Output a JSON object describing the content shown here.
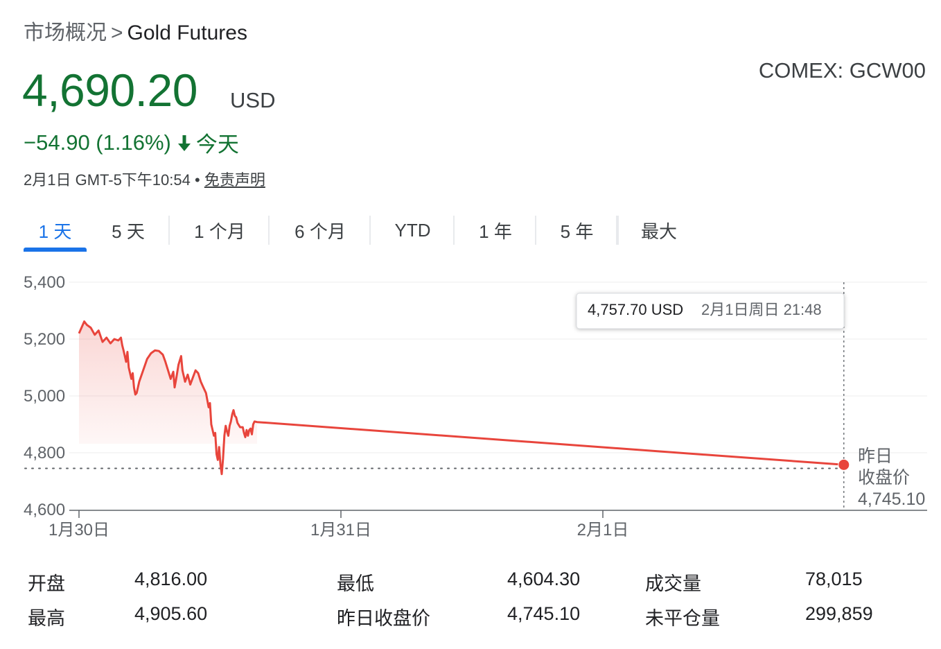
{
  "breadcrumb": {
    "root": "市场概况",
    "separator": ">",
    "current": "Gold Futures"
  },
  "quote": {
    "price": "4,690.20",
    "currency": "USD",
    "ticker": "COMEX: GCW00",
    "change": "−54.90 (1.16%)",
    "change_period": "今天",
    "timestamp": "2月1日 GMT-5下午10:54",
    "bullet": "•",
    "disclaimer": "免责声明"
  },
  "colors": {
    "up_green": "#137333",
    "line_red": "#e8453c",
    "accent_blue": "#1a73e8"
  },
  "tabs": [
    {
      "label": "1 天",
      "active": true
    },
    {
      "label": "5 天",
      "active": false
    },
    {
      "label": "1 个月",
      "active": false
    },
    {
      "label": "6 个月",
      "active": false
    },
    {
      "label": "YTD",
      "active": false
    },
    {
      "label": "1 年",
      "active": false
    },
    {
      "label": "5 年",
      "active": false
    },
    {
      "label": "最大",
      "active": false
    }
  ],
  "tooltip": {
    "value": "4,757.70 USD",
    "time": "2月1日周日 21:48"
  },
  "prev_close_label": [
    "昨日",
    "收盘价"
  ],
  "prev_close_value": "4,745.10",
  "chart_data": {
    "type": "line",
    "x_labels": [
      "1月30日",
      "1月31日",
      "2月1日"
    ],
    "y_ticks": [
      5400,
      5200,
      5000,
      4800,
      4600
    ],
    "y_tick_labels": [
      "5,400",
      "5,200",
      "5,000",
      "4,800",
      "4,600"
    ],
    "ylim": [
      4600,
      5400
    ],
    "xlim_days": [
      0,
      2.92
    ],
    "prev_close": 4745.1,
    "series": [
      {
        "points": [
          [
            0.0,
            5220
          ],
          [
            0.02,
            5262
          ],
          [
            0.03,
            5250
          ],
          [
            0.045,
            5240
          ],
          [
            0.06,
            5215
          ],
          [
            0.075,
            5230
          ],
          [
            0.09,
            5190
          ],
          [
            0.105,
            5205
          ],
          [
            0.12,
            5185
          ],
          [
            0.135,
            5200
          ],
          [
            0.15,
            5195
          ],
          [
            0.16,
            5205
          ],
          [
            0.165,
            5178
          ],
          [
            0.17,
            5160
          ],
          [
            0.18,
            5120
          ],
          [
            0.185,
            5155
          ],
          [
            0.19,
            5100
          ],
          [
            0.2,
            5060
          ],
          [
            0.205,
            5080
          ],
          [
            0.21,
            5030
          ],
          [
            0.215,
            5005
          ],
          [
            0.22,
            5010
          ],
          [
            0.23,
            5050
          ],
          [
            0.245,
            5090
          ],
          [
            0.26,
            5130
          ],
          [
            0.275,
            5150
          ],
          [
            0.29,
            5160
          ],
          [
            0.305,
            5158
          ],
          [
            0.32,
            5145
          ],
          [
            0.33,
            5120
          ],
          [
            0.34,
            5090
          ],
          [
            0.35,
            5060
          ],
          [
            0.36,
            5085
          ],
          [
            0.365,
            5030
          ],
          [
            0.37,
            5055
          ],
          [
            0.38,
            5110
          ],
          [
            0.39,
            5140
          ],
          [
            0.395,
            5090
          ],
          [
            0.405,
            5050
          ],
          [
            0.415,
            5075
          ],
          [
            0.425,
            5040
          ],
          [
            0.435,
            5065
          ],
          [
            0.445,
            5090
          ],
          [
            0.455,
            5080
          ],
          [
            0.465,
            5050
          ],
          [
            0.475,
            5030
          ],
          [
            0.485,
            5010
          ],
          [
            0.495,
            4960
          ],
          [
            0.5,
            4975
          ],
          [
            0.505,
            4900
          ],
          [
            0.51,
            4880
          ],
          [
            0.515,
            4860
          ],
          [
            0.52,
            4870
          ],
          [
            0.525,
            4795
          ],
          [
            0.53,
            4775
          ],
          [
            0.535,
            4820
          ],
          [
            0.54,
            4760
          ],
          [
            0.545,
            4725
          ],
          [
            0.55,
            4780
          ],
          [
            0.555,
            4860
          ],
          [
            0.56,
            4895
          ],
          [
            0.565,
            4875
          ],
          [
            0.57,
            4860
          ],
          [
            0.575,
            4895
          ],
          [
            0.58,
            4910
          ],
          [
            0.585,
            4935
          ],
          [
            0.59,
            4950
          ],
          [
            0.595,
            4930
          ],
          [
            0.6,
            4925
          ],
          [
            0.605,
            4905
          ],
          [
            0.615,
            4890
          ],
          [
            0.625,
            4890
          ],
          [
            0.63,
            4870
          ],
          [
            0.635,
            4855
          ],
          [
            0.64,
            4880
          ],
          [
            0.645,
            4860
          ],
          [
            0.65,
            4880
          ],
          [
            0.655,
            4885
          ],
          [
            0.66,
            4865
          ],
          [
            0.665,
            4900
          ],
          [
            0.67,
            4910
          ],
          [
            0.68,
            4908
          ],
          [
            2.92,
            4757.7
          ]
        ]
      }
    ]
  }
}
